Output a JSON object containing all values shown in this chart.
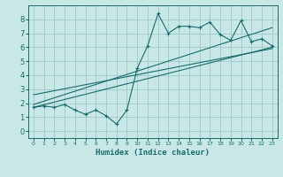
{
  "xlabel": "Humidex (Indice chaleur)",
  "ylabel": "",
  "bg_color": "#c8e8e8",
  "grid_color": "#a0c8c8",
  "line_color": "#1a6b6b",
  "xlim": [
    -0.5,
    23.5
  ],
  "ylim": [
    -0.5,
    9.0
  ],
  "xticks": [
    0,
    1,
    2,
    3,
    4,
    5,
    6,
    7,
    8,
    9,
    10,
    11,
    12,
    13,
    14,
    15,
    16,
    17,
    18,
    19,
    20,
    21,
    22,
    23
  ],
  "yticks": [
    0,
    1,
    2,
    3,
    4,
    5,
    6,
    7,
    8
  ],
  "main_data_x": [
    0,
    1,
    2,
    3,
    4,
    5,
    6,
    7,
    8,
    9,
    10,
    11,
    12,
    13,
    14,
    15,
    16,
    17,
    18,
    19,
    20,
    21,
    22,
    23
  ],
  "main_data_y": [
    1.7,
    1.8,
    1.7,
    1.9,
    1.5,
    1.2,
    1.5,
    1.1,
    0.5,
    1.5,
    4.5,
    6.1,
    8.4,
    7.0,
    7.5,
    7.5,
    7.4,
    7.8,
    6.9,
    6.5,
    7.9,
    6.4,
    6.6,
    6.1
  ],
  "line1_x": [
    0,
    23
  ],
  "line1_y": [
    1.7,
    6.0
  ],
  "line2_x": [
    0,
    23
  ],
  "line2_y": [
    1.9,
    7.4
  ],
  "line3_x": [
    0,
    23
  ],
  "line3_y": [
    2.6,
    5.9
  ]
}
